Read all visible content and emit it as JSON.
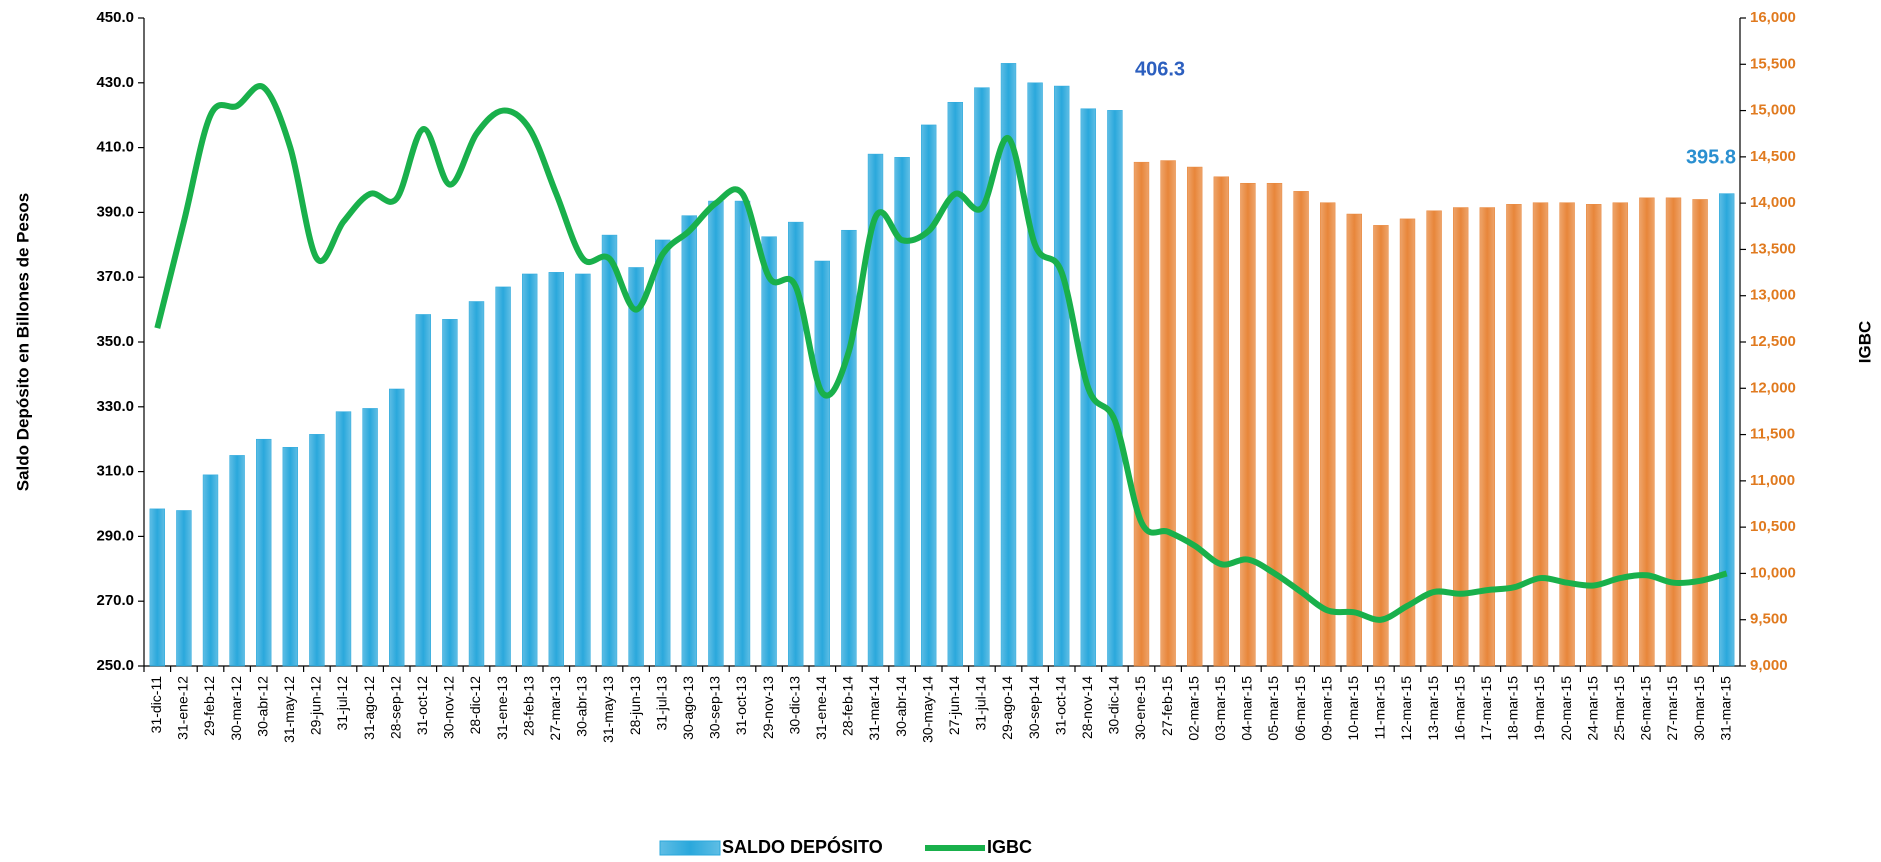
{
  "chart_data": {
    "type": "bar_line",
    "y_label": "Saldo Depósito en Billones de Pesos",
    "y2_label": "IGBC",
    "annotations": [
      "406.3",
      "395.8"
    ],
    "categories": [
      "31-dic-11",
      "31-ene-12",
      "29-feb-12",
      "30-mar-12",
      "30-abr-12",
      "31-may-12",
      "29-jun-12",
      "31-jul-12",
      "31-ago-12",
      "28-sep-12",
      "31-oct-12",
      "30-nov-12",
      "28-dic-12",
      "31-ene-13",
      "28-feb-13",
      "27-mar-13",
      "30-abr-13",
      "31-may-13",
      "28-jun-13",
      "31-jul-13",
      "30-ago-13",
      "30-sep-13",
      "31-oct-13",
      "29-nov-13",
      "30-dic-13",
      "31-ene-14",
      "28-feb-14",
      "31-mar-14",
      "30-abr-14",
      "30-may-14",
      "27-jun-14",
      "31-jul-14",
      "29-ago-14",
      "30-sep-14",
      "31-oct-14",
      "28-nov-14",
      "30-dic-14",
      "30-ene-15",
      "27-feb-15",
      "02-mar-15",
      "03-mar-15",
      "04-mar-15",
      "05-mar-15",
      "06-mar-15",
      "09-mar-15",
      "10-mar-15",
      "11-mar-15",
      "12-mar-15",
      "13-mar-15",
      "16-mar-15",
      "17-mar-15",
      "18-mar-15",
      "19-mar-15",
      "20-mar-15",
      "24-mar-15",
      "25-mar-15",
      "26-mar-15",
      "27-mar-15",
      "30-mar-15",
      "31-mar-15"
    ],
    "series": [
      {
        "name": "SALDO DEPÓSITO",
        "type": "bar",
        "color": "#2aa8dc",
        "colors": [
          "#2aa8dc",
          "#2aa8dc",
          "#2aa8dc",
          "#2aa8dc",
          "#2aa8dc",
          "#2aa8dc",
          "#2aa8dc",
          "#2aa8dc",
          "#2aa8dc",
          "#2aa8dc",
          "#2aa8dc",
          "#2aa8dc",
          "#2aa8dc",
          "#2aa8dc",
          "#2aa8dc",
          "#2aa8dc",
          "#2aa8dc",
          "#2aa8dc",
          "#2aa8dc",
          "#2aa8dc",
          "#2aa8dc",
          "#2aa8dc",
          "#2aa8dc",
          "#2aa8dc",
          "#2aa8dc",
          "#2aa8dc",
          "#2aa8dc",
          "#2aa8dc",
          "#2aa8dc",
          "#2aa8dc",
          "#2aa8dc",
          "#2aa8dc",
          "#2aa8dc",
          "#2aa8dc",
          "#2aa8dc",
          "#2aa8dc",
          "#2aa8dc",
          "#e8863a",
          "#e8863a",
          "#e8863a",
          "#e8863a",
          "#e8863a",
          "#e8863a",
          "#e8863a",
          "#e8863a",
          "#e8863a",
          "#e8863a",
          "#e8863a",
          "#e8863a",
          "#e8863a",
          "#e8863a",
          "#e8863a",
          "#e8863a",
          "#e8863a",
          "#e8863a",
          "#e8863a",
          "#e8863a",
          "#e8863a",
          "#e8863a",
          "#2aa8dc"
        ],
        "values": [
          298.5,
          298,
          309,
          315,
          320,
          317.5,
          321.5,
          328.5,
          329.5,
          335.5,
          358.5,
          357,
          362.5,
          367,
          371,
          371.5,
          371,
          383,
          373,
          381.5,
          389,
          393.5,
          393.5,
          382.5,
          387,
          375,
          384.5,
          408,
          407,
          417,
          424,
          428.5,
          436,
          430,
          429,
          422,
          421.5,
          405.5,
          406,
          404,
          401,
          399,
          399,
          396.5,
          393,
          389.5,
          386,
          388,
          390.5,
          391.5,
          391.5,
          392.5,
          393,
          393,
          392.5,
          393,
          394.5,
          394.5,
          394,
          395.8
        ]
      },
      {
        "name": "IGBC",
        "type": "line",
        "axis": "y2",
        "color": "#19b04b",
        "values": [
          12650,
          13800,
          14950,
          15050,
          15250,
          14600,
          13400,
          13800,
          14100,
          14050,
          14800,
          14200,
          14750,
          15000,
          14800,
          14100,
          13400,
          13400,
          12850,
          13450,
          13700,
          14000,
          14100,
          13200,
          13100,
          11950,
          12400,
          13850,
          13600,
          13700,
          14100,
          13950,
          14700,
          13550,
          13250,
          12000,
          11650,
          10550,
          10450,
          10300,
          10100,
          10150,
          10000,
          9800,
          9600,
          9580,
          9500,
          9650,
          9800,
          9780,
          9820,
          9850,
          9950,
          9900,
          9870,
          9950,
          9980,
          9900,
          9920,
          10000
        ]
      }
    ],
    "ylim": [
      250,
      450
    ],
    "yticks": [
      {
        "value": 250,
        "label": "250.0"
      },
      {
        "value": 270,
        "label": "270.0"
      },
      {
        "value": 290,
        "label": "290.0"
      },
      {
        "value": 310,
        "label": "310.0"
      },
      {
        "value": 330,
        "label": "330.0"
      },
      {
        "value": 350,
        "label": "350.0"
      },
      {
        "value": 370,
        "label": "370.0"
      },
      {
        "value": 390,
        "label": "390.0"
      },
      {
        "value": 410,
        "label": "410.0"
      },
      {
        "value": 430,
        "label": "430.0"
      },
      {
        "value": 450,
        "label": "450.0"
      }
    ],
    "y2lim": [
      9000,
      16000
    ],
    "y2ticks": [
      {
        "value": 9000,
        "label": "9,000"
      },
      {
        "value": 9500,
        "label": "9,500"
      },
      {
        "value": 10000,
        "label": "10,000"
      },
      {
        "value": 10500,
        "label": "10,500"
      },
      {
        "value": 11000,
        "label": "11,000"
      },
      {
        "value": 11500,
        "label": "11,500"
      },
      {
        "value": 12000,
        "label": "12,000"
      },
      {
        "value": 12500,
        "label": "12,500"
      },
      {
        "value": 13000,
        "label": "13,000"
      },
      {
        "value": 13500,
        "label": "13,500"
      },
      {
        "value": 14000,
        "label": "14,000"
      },
      {
        "value": 14500,
        "label": "14,500"
      },
      {
        "value": 15000,
        "label": "15,000"
      },
      {
        "value": 15500,
        "label": "15,500"
      },
      {
        "value": 16000,
        "label": "16,000"
      }
    ],
    "y2_color": "#e07a1f",
    "grid": false,
    "legend": "bottom"
  }
}
